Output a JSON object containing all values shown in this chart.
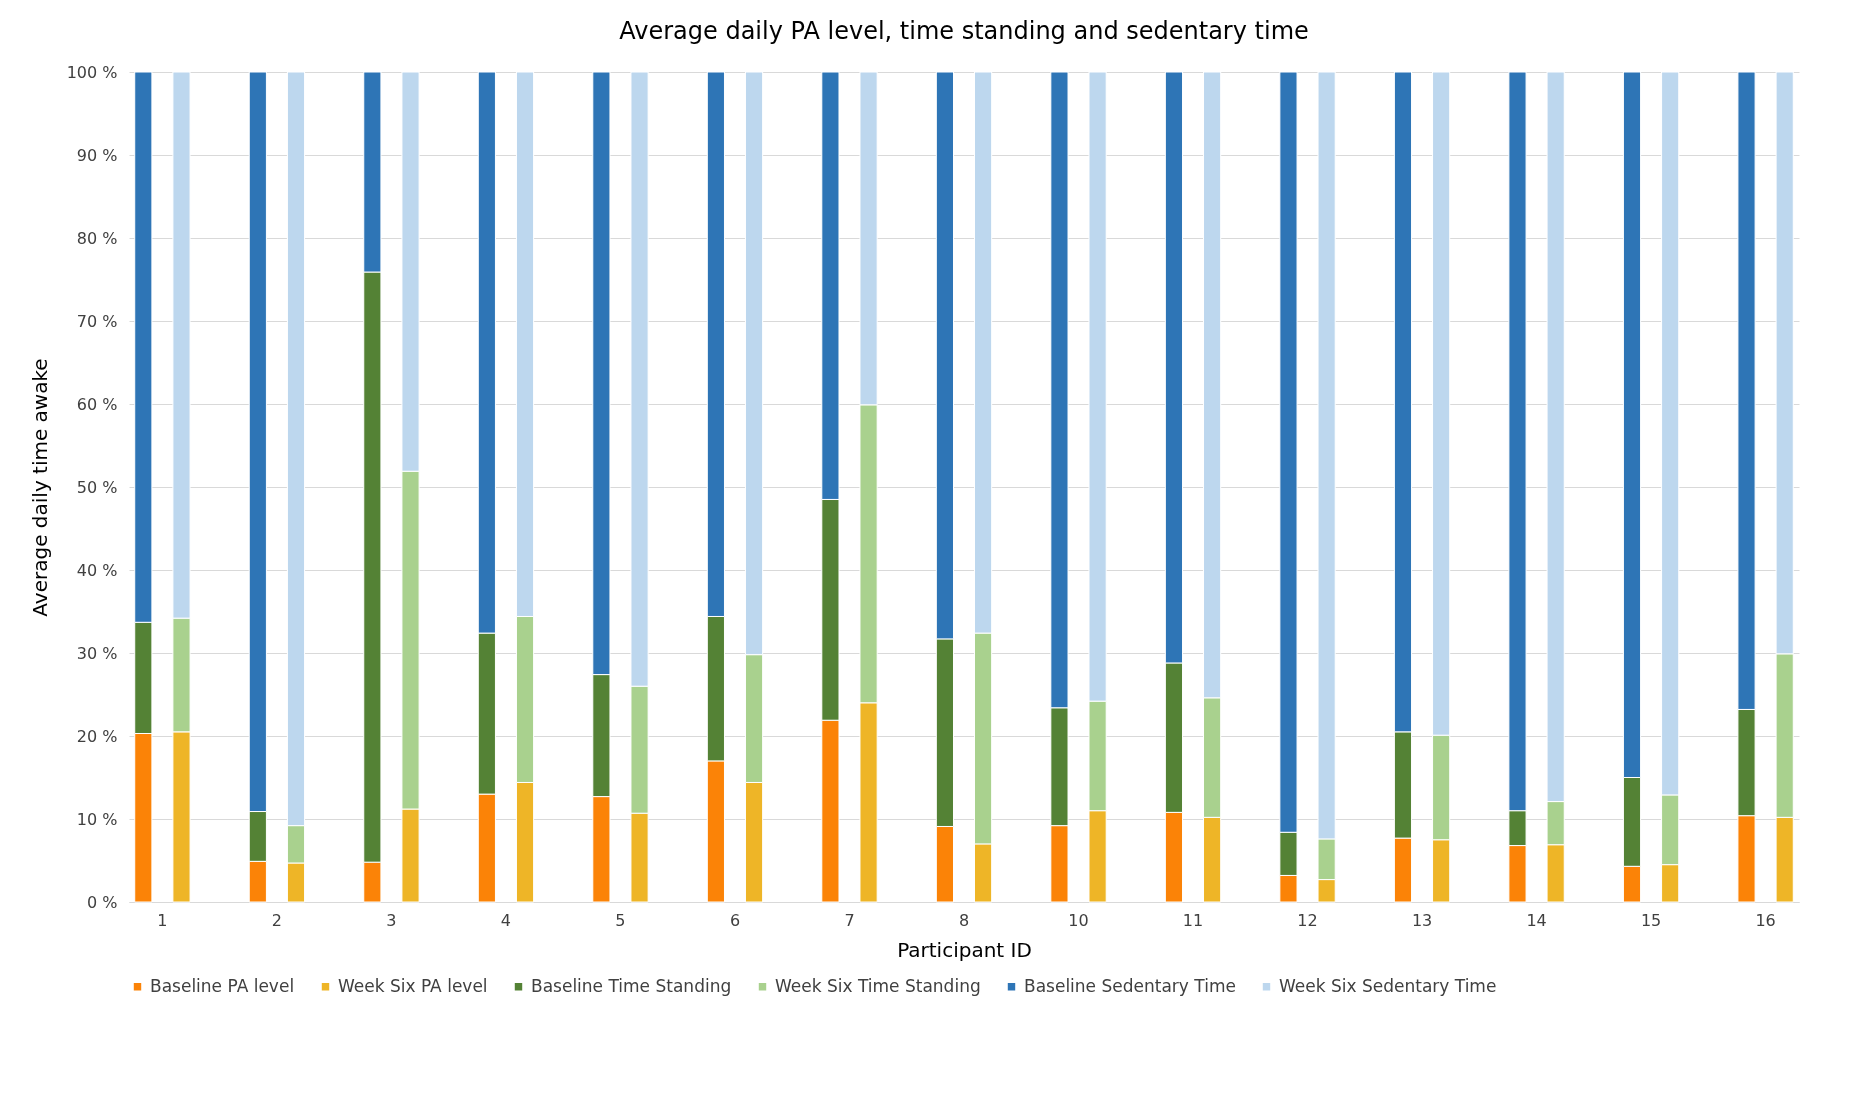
{
  "chart_data": {
    "type": "bar",
    "title": "Average daily PA level, time standing and sedentary time",
    "xlabel": "Participant ID",
    "ylabel": "Average daily time awake",
    "categories": [
      null,
      "1",
      null,
      null,
      null,
      null,
      null,
      "2",
      null,
      null,
      null,
      null,
      null,
      "3",
      null,
      null,
      null,
      null,
      null,
      "4",
      null,
      null,
      null,
      null,
      null,
      "5",
      null,
      null,
      null,
      null,
      null,
      "6",
      null,
      null,
      null,
      null,
      null,
      "7",
      null,
      null,
      null,
      null,
      null,
      "8",
      null,
      null,
      null,
      null,
      null,
      "10",
      null,
      null,
      null,
      null,
      null,
      "11",
      null,
      null,
      null,
      null,
      null,
      "12",
      null,
      null,
      null,
      null,
      null,
      "13",
      null,
      null,
      null,
      null,
      null,
      "14",
      null,
      null,
      null,
      null,
      null,
      "15",
      null,
      null,
      null,
      null,
      null,
      "16",
      null
    ],
    "stacked": true,
    "series": [
      {
        "name": "Baseline PA level",
        "color": "#fb8307",
        "values": [
          20.3,
          null,
          null,
          null,
          null,
          null,
          4.9,
          null,
          null,
          null,
          null,
          null,
          4.8,
          null,
          null,
          null,
          null,
          null,
          13.0,
          null,
          null,
          null,
          null,
          null,
          12.7,
          null,
          null,
          null,
          null,
          null,
          17.0,
          null,
          null,
          null,
          null,
          null,
          21.9,
          null,
          null,
          null,
          null,
          null,
          9.1,
          null,
          null,
          null,
          null,
          null,
          9.2,
          null,
          null,
          null,
          null,
          null,
          10.8,
          null,
          null,
          null,
          null,
          null,
          3.2,
          null,
          null,
          null,
          null,
          null,
          7.7,
          null,
          null,
          null,
          null,
          null,
          6.8,
          null,
          null,
          null,
          null,
          null,
          4.3,
          null,
          null,
          null,
          null,
          null,
          10.4,
          null,
          null
        ]
      },
      {
        "name": "Week Six PA level",
        "color": "#eeb527",
        "values": [
          null,
          null,
          20.5,
          null,
          null,
          null,
          null,
          null,
          4.7,
          null,
          null,
          null,
          null,
          null,
          11.2,
          null,
          null,
          null,
          null,
          null,
          14.4,
          null,
          null,
          null,
          null,
          null,
          10.7,
          null,
          null,
          null,
          null,
          null,
          14.4,
          null,
          null,
          null,
          null,
          null,
          24.0,
          null,
          null,
          null,
          null,
          null,
          7.0,
          null,
          null,
          null,
          null,
          null,
          11.0,
          null,
          null,
          null,
          null,
          null,
          10.2,
          null,
          null,
          null,
          null,
          null,
          2.7,
          null,
          null,
          null,
          null,
          null,
          7.5,
          null,
          null,
          null,
          null,
          null,
          6.9,
          null,
          null,
          null,
          null,
          null,
          4.5,
          null,
          null,
          null,
          null,
          null,
          10.2
        ]
      },
      {
        "name": "Baseline Time Standing",
        "color": "#548235",
        "values": [
          13.4,
          null,
          null,
          null,
          null,
          null,
          6.0,
          null,
          null,
          null,
          null,
          null,
          71.1,
          null,
          null,
          null,
          null,
          null,
          19.4,
          null,
          null,
          null,
          null,
          null,
          14.7,
          null,
          null,
          null,
          null,
          null,
          17.4,
          null,
          null,
          null,
          null,
          null,
          26.6,
          null,
          null,
          null,
          null,
          null,
          22.6,
          null,
          null,
          null,
          null,
          null,
          14.2,
          null,
          null,
          null,
          null,
          null,
          18.0,
          null,
          null,
          null,
          null,
          null,
          5.2,
          null,
          null,
          null,
          null,
          null,
          12.8,
          null,
          null,
          null,
          null,
          null,
          4.2,
          null,
          null,
          null,
          null,
          null,
          10.7,
          null,
          null,
          null,
          null,
          null,
          12.8,
          null,
          null
        ]
      },
      {
        "name": "Week Six Time Standing",
        "color": "#a9d18e",
        "values": [
          null,
          null,
          13.7,
          null,
          null,
          null,
          null,
          null,
          4.5,
          null,
          null,
          null,
          null,
          null,
          40.7,
          null,
          null,
          null,
          null,
          null,
          20.0,
          null,
          null,
          null,
          null,
          null,
          15.3,
          null,
          null,
          null,
          null,
          null,
          15.4,
          null,
          null,
          null,
          null,
          null,
          35.9,
          null,
          null,
          null,
          null,
          null,
          25.4,
          null,
          null,
          null,
          null,
          null,
          13.2,
          null,
          null,
          null,
          null,
          null,
          14.4,
          null,
          null,
          null,
          null,
          null,
          4.9,
          null,
          null,
          null,
          null,
          null,
          12.6,
          null,
          null,
          null,
          null,
          null,
          5.2,
          null,
          null,
          null,
          null,
          null,
          8.4,
          null,
          null,
          null,
          null,
          null,
          19.7
        ]
      },
      {
        "name": "Baseline Sedentary Time",
        "color": "#2e75b6",
        "values": [
          66.3,
          null,
          null,
          null,
          null,
          null,
          89.1,
          null,
          null,
          null,
          null,
          null,
          24.1,
          null,
          null,
          null,
          null,
          null,
          67.6,
          null,
          null,
          null,
          null,
          null,
          72.6,
          null,
          null,
          null,
          null,
          null,
          65.6,
          null,
          null,
          null,
          null,
          null,
          51.5,
          null,
          null,
          null,
          null,
          null,
          68.3,
          null,
          null,
          null,
          null,
          null,
          76.6,
          null,
          null,
          null,
          null,
          null,
          71.2,
          null,
          null,
          null,
          null,
          null,
          91.6,
          null,
          null,
          null,
          null,
          null,
          79.5,
          null,
          null,
          null,
          null,
          null,
          89.0,
          null,
          null,
          null,
          null,
          null,
          85.0,
          null,
          null,
          null,
          null,
          null,
          76.8,
          null,
          null
        ]
      },
      {
        "name": "Week Six Sedentary Time",
        "color": "#bdd7ee",
        "values": [
          null,
          null,
          65.8,
          null,
          null,
          null,
          null,
          null,
          90.8,
          null,
          null,
          null,
          null,
          null,
          48.1,
          null,
          null,
          null,
          null,
          null,
          65.6,
          null,
          null,
          null,
          null,
          null,
          74.0,
          null,
          null,
          null,
          null,
          null,
          70.2,
          null,
          null,
          null,
          null,
          null,
          40.1,
          null,
          null,
          null,
          null,
          null,
          67.6,
          null,
          null,
          null,
          null,
          null,
          75.8,
          null,
          null,
          null,
          null,
          null,
          75.4,
          null,
          null,
          null,
          null,
          null,
          92.4,
          null,
          null,
          null,
          null,
          null,
          79.9,
          null,
          null,
          null,
          null,
          null,
          87.9,
          null,
          null,
          null,
          null,
          null,
          87.1,
          null,
          null,
          null,
          null,
          null,
          70.1
        ]
      }
    ],
    "ylim": [
      0,
      100
    ],
    "yticks": [
      {
        "value": 0,
        "label": "0 %"
      },
      {
        "value": 10,
        "label": "10 %"
      },
      {
        "value": 20,
        "label": "20 %"
      },
      {
        "value": 30,
        "label": "30 %"
      },
      {
        "value": 40,
        "label": "40 %"
      },
      {
        "value": 50,
        "label": "50 %"
      },
      {
        "value": 60,
        "label": "60 %"
      },
      {
        "value": 70,
        "label": "70 %"
      },
      {
        "value": 80,
        "label": "80 %"
      },
      {
        "value": 90,
        "label": "90 %"
      },
      {
        "value": 100,
        "label": "100 %"
      }
    ],
    "grid": "y",
    "legend": "bottom"
  }
}
